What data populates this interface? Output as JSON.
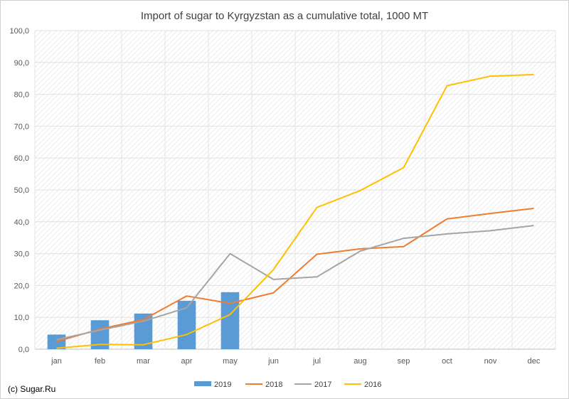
{
  "chart_data": {
    "type": "bar+line",
    "title": "Import of sugar to Kyrgyzstan as a cumulative total, 1000 MT",
    "xlabel": "",
    "ylabel": "",
    "ylim": [
      0,
      100
    ],
    "yticks": [
      "0,0",
      "10,0",
      "20,0",
      "30,0",
      "40,0",
      "50,0",
      "60,0",
      "70,0",
      "80,0",
      "90,0",
      "100,0"
    ],
    "categories": [
      "jan",
      "feb",
      "mar",
      "apr",
      "may",
      "jun",
      "jul",
      "aug",
      "sep",
      "oct",
      "nov",
      "dec"
    ],
    "grid": true,
    "legend": "bottom",
    "series": [
      {
        "name": "2019",
        "type": "bar",
        "color": "#5b9bd5",
        "values": [
          4.6,
          9.1,
          11.2,
          15.2,
          17.9,
          null,
          null,
          null,
          null,
          null,
          null,
          null
        ]
      },
      {
        "name": "2018",
        "type": "line",
        "color": "#ed7d31",
        "values": [
          2.4,
          6.3,
          9.3,
          16.7,
          14.4,
          17.7,
          29.8,
          31.5,
          32.2,
          40.9,
          42.6,
          44.2
        ]
      },
      {
        "name": "2017",
        "type": "line",
        "color": "#a5a5a5",
        "values": [
          3.0,
          6.0,
          8.8,
          13.0,
          30.0,
          21.9,
          22.7,
          30.8,
          34.8,
          36.2,
          37.2,
          38.8
        ]
      },
      {
        "name": "2016",
        "type": "line",
        "color": "#ffc000",
        "values": [
          0.3,
          1.5,
          1.4,
          4.6,
          10.9,
          25.0,
          44.5,
          49.8,
          57.0,
          82.7,
          85.7,
          86.2
        ]
      }
    ]
  },
  "credit": "(c) Sugar.Ru"
}
